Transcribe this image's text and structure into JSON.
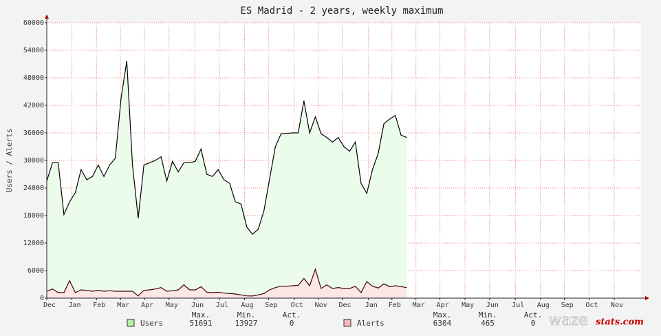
{
  "chart_data": {
    "type": "area",
    "title": "ES Madrid - 2 years, weekly maximum",
    "y_label": "Users / Alerts",
    "xlim": [
      0,
      104
    ],
    "ylim": [
      0,
      60000
    ],
    "yticks": [
      0,
      6000,
      12000,
      18000,
      24000,
      30000,
      36000,
      42000,
      48000,
      54000,
      60000
    ],
    "xticks": [
      {
        "value": 0,
        "label": "Dec"
      },
      {
        "value": 4.4,
        "label": "Jan"
      },
      {
        "value": 8.7,
        "label": "Feb"
      },
      {
        "value": 12.9,
        "label": "Mar"
      },
      {
        "value": 17.1,
        "label": "Apr"
      },
      {
        "value": 21.4,
        "label": "May"
      },
      {
        "value": 25.9,
        "label": "Jun"
      },
      {
        "value": 30.2,
        "label": "Jul"
      },
      {
        "value": 34.6,
        "label": "Aug"
      },
      {
        "value": 38.8,
        "label": "Sep"
      },
      {
        "value": 43.3,
        "label": "Oct"
      },
      {
        "value": 47.5,
        "label": "Nov"
      },
      {
        "value": 51.7,
        "label": "Dec"
      },
      {
        "value": 56.3,
        "label": "Jan"
      },
      {
        "value": 60.4,
        "label": "Feb"
      },
      {
        "value": 64.6,
        "label": "Mar"
      },
      {
        "value": 68.8,
        "label": "Apr"
      },
      {
        "value": 73.2,
        "label": "May"
      },
      {
        "value": 77.5,
        "label": "Jun"
      },
      {
        "value": 82,
        "label": "Jul"
      },
      {
        "value": 86.4,
        "label": "Aug"
      },
      {
        "value": 90.6,
        "label": "Sep"
      },
      {
        "value": 94.9,
        "label": "Oct"
      },
      {
        "value": 99.3,
        "label": "Nov"
      }
    ],
    "x": [
      0,
      1,
      2,
      3,
      4,
      5,
      6,
      7,
      8,
      9,
      10,
      11,
      12,
      13,
      14,
      15,
      16,
      17,
      18,
      19,
      20,
      21,
      22,
      23,
      24,
      25,
      26,
      27,
      28,
      29,
      30,
      31,
      32,
      33,
      34,
      35,
      36,
      37,
      38,
      39,
      40,
      41,
      42,
      43,
      44,
      45,
      46,
      47,
      48,
      49,
      50,
      51,
      52,
      53,
      54,
      55,
      56,
      57,
      58,
      59,
      60,
      61,
      62,
      63
    ],
    "grid": true,
    "stat_labels": [
      "Max.",
      "Min.",
      "Act."
    ],
    "series": [
      {
        "name": "Users",
        "color": "#000000",
        "fill": "#ecfcea",
        "swatch": "#b6f0a0",
        "max": 51691,
        "min": 13927,
        "act": 0,
        "values": [
          25500,
          29500,
          29500,
          18200,
          21000,
          23000,
          28000,
          25800,
          26500,
          29000,
          26500,
          29000,
          30500,
          43500,
          51691,
          29000,
          17400,
          29000,
          29500,
          30000,
          30800,
          25500,
          29800,
          27500,
          29500,
          29500,
          29800,
          32500,
          27000,
          26500,
          28000,
          25800,
          25000,
          21000,
          20500,
          15500,
          13927,
          15000,
          19000,
          26000,
          33000,
          35800,
          35900,
          36000,
          36000,
          43000,
          36000,
          39500,
          35800,
          35000,
          34000,
          35000,
          33000,
          32000,
          34000,
          25000,
          22800,
          28000,
          31500,
          38000,
          39000,
          39800,
          35500,
          35000
        ]
      },
      {
        "name": "Alerts",
        "color": "#400000",
        "fill": "#fce6e6",
        "swatch": "#f4b8b8",
        "max": 6304,
        "min": 465,
        "act": 0,
        "values": [
          1500,
          2000,
          1200,
          1200,
          3800,
          1200,
          1800,
          1700,
          1500,
          1700,
          1500,
          1600,
          1500,
          1500,
          1500,
          1500,
          500,
          1700,
          1800,
          2000,
          2300,
          1500,
          1600,
          1800,
          2900,
          1800,
          1800,
          2500,
          1300,
          1200,
          1300,
          1100,
          1000,
          900,
          700,
          500,
          465,
          700,
          1000,
          1800,
          2300,
          2600,
          2600,
          2700,
          2800,
          4300,
          2700,
          6304,
          2100,
          2900,
          2100,
          2300,
          2100,
          2100,
          2600,
          1200,
          3600,
          2600,
          2200,
          3100,
          2500,
          2700,
          2500,
          2300
        ]
      }
    ],
    "watermark": [
      "waze",
      "stats.com"
    ]
  }
}
